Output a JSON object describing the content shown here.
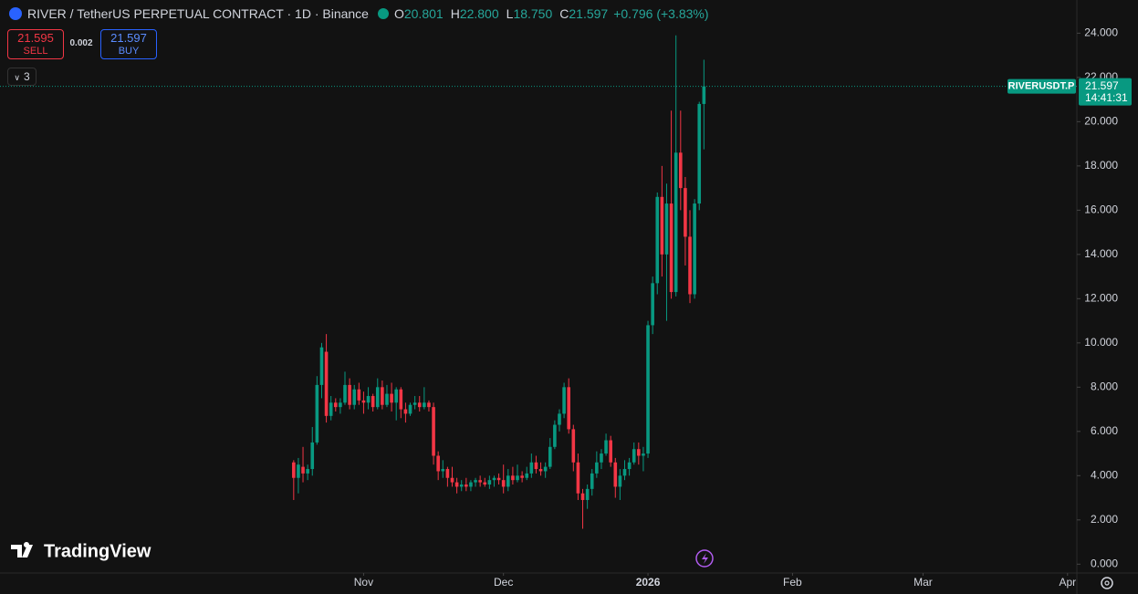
{
  "header": {
    "symbol": "RIVER / TetherUS PERPETUAL CONTRACT · 1D · Binance",
    "open_label": "O",
    "open": "20.801",
    "high_label": "H",
    "high": "22.800",
    "low_label": "L",
    "low": "18.750",
    "close_label": "C",
    "close": "21.597",
    "change": "+0.796 (+3.83%)"
  },
  "trade": {
    "sell_price": "21.595",
    "sell": "SELL",
    "spread": "0.002",
    "buy_price": "21.597",
    "buy": "BUY"
  },
  "indicators_count": "3",
  "price_label": {
    "symbol": "RIVERUSDT.P",
    "countdown": "14:41:31"
  },
  "brand": "TradingView",
  "chart_data": {
    "type": "candlestick",
    "up_color": "#089981",
    "down_color": "#f23645",
    "x": [
      16,
      17,
      18,
      19,
      20,
      21,
      22,
      23,
      24,
      25,
      26,
      27,
      28,
      29,
      30,
      31,
      32,
      33,
      34,
      35,
      36,
      37,
      38,
      39,
      40,
      41,
      42,
      43,
      44,
      45,
      46,
      47,
      48,
      49,
      50,
      51,
      52,
      53,
      54,
      55,
      56,
      57,
      58,
      59,
      60,
      61,
      62,
      63,
      64,
      65,
      66,
      67,
      68,
      69,
      70,
      71,
      72,
      73,
      74,
      75,
      76,
      77,
      78,
      79,
      80,
      81,
      82,
      83,
      84,
      85,
      86,
      87,
      88,
      89,
      90,
      91,
      92,
      93,
      94,
      95,
      96,
      97,
      98,
      99,
      100,
      101,
      102,
      103,
      104
    ],
    "open": [
      4.6,
      3.9,
      4.4,
      4.1,
      4.3,
      5.5,
      8.1,
      9.6,
      6.7,
      7.3,
      7.1,
      7.3,
      8.1,
      7.2,
      7.9,
      7.4,
      7.3,
      7.6,
      7.1,
      8.0,
      7.2,
      7.7,
      7.3,
      7.9,
      7.0,
      6.8,
      7.2,
      7.3,
      7.1,
      7.3,
      7.1,
      4.9,
      4.2,
      4.3,
      3.9,
      3.7,
      3.5,
      3.6,
      3.5,
      3.7,
      3.8,
      3.7,
      3.6,
      3.8,
      3.9,
      3.8,
      3.5,
      4.0,
      3.8,
      4.0,
      3.9,
      4.1,
      4.6,
      4.3,
      4.2,
      4.4,
      5.3,
      6.3,
      6.8,
      8.0,
      6.1,
      4.6,
      3.2,
      2.9,
      3.4,
      4.1,
      4.6,
      5.0,
      5.6,
      4.6,
      3.5,
      4.0,
      4.3,
      4.6,
      5.2,
      4.9,
      5.0,
      10.8,
      12.7,
      16.6,
      14.0,
      16.3,
      12.3,
      18.6,
      17.0,
      14.8,
      12.2,
      16.3,
      20.801
    ],
    "high": [
      4.7,
      4.8,
      5.3,
      4.5,
      6.2,
      8.5,
      10.0,
      10.4,
      7.6,
      7.5,
      7.5,
      8.7,
      8.4,
      8.1,
      8.2,
      7.8,
      8.0,
      7.7,
      8.4,
      8.3,
      8.1,
      8.2,
      8.0,
      8.0,
      7.3,
      7.3,
      7.6,
      7.6,
      8.0,
      7.4,
      7.3,
      5.1,
      4.7,
      4.4,
      4.4,
      3.9,
      3.8,
      3.9,
      3.8,
      3.9,
      4.0,
      3.9,
      4.0,
      4.0,
      4.1,
      4.5,
      4.3,
      4.4,
      4.5,
      4.2,
      4.4,
      5.0,
      4.9,
      4.6,
      4.6,
      5.7,
      6.5,
      7.0,
      8.2,
      8.4,
      6.3,
      5.0,
      3.4,
      3.6,
      4.3,
      5.1,
      5.2,
      5.9,
      5.8,
      4.8,
      4.3,
      4.7,
      4.8,
      5.5,
      5.5,
      5.3,
      11.0,
      13.0,
      16.8,
      18.0,
      17.2,
      20.5,
      23.9,
      20.5,
      17.5,
      16.0,
      16.5,
      20.9,
      22.8
    ],
    "low": [
      2.9,
      3.2,
      3.7,
      3.8,
      4.0,
      5.4,
      7.5,
      6.4,
      6.5,
      6.9,
      6.8,
      7.2,
      7.0,
      7.0,
      7.2,
      6.8,
      7.0,
      6.9,
      7.0,
      7.0,
      7.1,
      6.9,
      6.5,
      6.6,
      6.4,
      6.7,
      7.0,
      6.9,
      7.0,
      6.9,
      4.5,
      3.8,
      3.9,
      3.5,
      3.5,
      3.2,
      3.3,
      3.3,
      3.3,
      3.5,
      3.5,
      3.5,
      3.4,
      3.5,
      3.6,
      3.2,
      3.3,
      3.6,
      3.7,
      3.7,
      3.8,
      3.9,
      4.1,
      4.0,
      3.9,
      4.3,
      5.2,
      6.0,
      6.6,
      5.9,
      4.2,
      2.9,
      1.6,
      2.5,
      3.1,
      3.9,
      4.3,
      4.9,
      4.4,
      3.0,
      2.9,
      3.8,
      4.0,
      4.5,
      4.5,
      4.2,
      4.8,
      10.4,
      12.2,
      13.0,
      11.0,
      12.0,
      12.1,
      16.0,
      13.5,
      11.8,
      12.0,
      16.0,
      18.75
    ],
    "close": [
      3.9,
      4.5,
      4.1,
      4.3,
      5.5,
      8.1,
      9.8,
      6.7,
      7.3,
      7.1,
      7.3,
      8.1,
      7.2,
      7.9,
      7.4,
      7.3,
      7.6,
      7.1,
      8.0,
      7.2,
      7.7,
      7.3,
      7.9,
      7.0,
      6.8,
      7.2,
      7.3,
      7.1,
      7.3,
      7.1,
      4.9,
      4.2,
      4.3,
      3.9,
      3.7,
      3.5,
      3.6,
      3.5,
      3.7,
      3.8,
      3.7,
      3.6,
      3.8,
      3.9,
      3.8,
      3.5,
      4.0,
      3.8,
      4.0,
      3.9,
      4.1,
      4.6,
      4.3,
      4.2,
      4.4,
      5.3,
      6.3,
      6.8,
      8.0,
      6.1,
      4.6,
      3.2,
      2.9,
      3.4,
      4.1,
      4.6,
      5.0,
      5.6,
      4.6,
      3.5,
      4.0,
      4.3,
      4.6,
      5.2,
      4.9,
      5.0,
      10.8,
      12.7,
      16.6,
      14.0,
      16.3,
      12.3,
      18.6,
      17.0,
      14.8,
      12.2,
      16.3,
      20.801,
      21.597
    ],
    "xlim": [
      -47,
      184
    ],
    "xticks": [
      {
        "value": 31,
        "label": "Nov"
      },
      {
        "value": 61,
        "label": "Dec"
      },
      {
        "value": 92,
        "label": "2026"
      },
      {
        "value": 123,
        "label": "Feb"
      },
      {
        "value": 151,
        "label": "Mar"
      },
      {
        "value": 182,
        "label": "Apr"
      }
    ],
    "ylim": [
      -0.4,
      25.5
    ],
    "yticks": [
      {
        "value": 0,
        "label": "0.000"
      },
      {
        "value": 2,
        "label": "2.000"
      },
      {
        "value": 4,
        "label": "4.000"
      },
      {
        "value": 6,
        "label": "6.000"
      },
      {
        "value": 8,
        "label": "8.000"
      },
      {
        "value": 10,
        "label": "10.000"
      },
      {
        "value": 12,
        "label": "12.000"
      },
      {
        "value": 14,
        "label": "14.000"
      },
      {
        "value": 16,
        "label": "16.000"
      },
      {
        "value": 18,
        "label": "18.000"
      },
      {
        "value": 20,
        "label": "20.000"
      },
      {
        "value": 22,
        "label": "22.000"
      },
      {
        "value": 24,
        "label": "24.000"
      }
    ],
    "last_price": 21.597,
    "grid": false
  }
}
